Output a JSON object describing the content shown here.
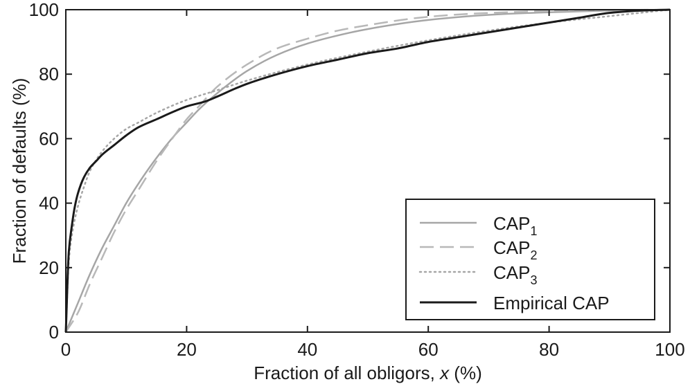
{
  "chart_data": {
    "type": "line",
    "title": "",
    "xlabel": "Fraction of all obligors, x (%)",
    "xlabel_parts": [
      "Fraction of all obligors, ",
      "x",
      " (%)"
    ],
    "ylabel": "Fraction of defaults (%)",
    "xlim": [
      0,
      100
    ],
    "ylim": [
      0,
      100
    ],
    "xticks": [
      0,
      20,
      40,
      60,
      80,
      100
    ],
    "yticks": [
      0,
      20,
      40,
      60,
      80,
      100
    ],
    "grid": false,
    "legend_position": "bottom-right",
    "series": [
      {
        "name": "CAP1",
        "label_base": "CAP",
        "label_sub": "1",
        "style": "solid",
        "color": "#a6a6a6",
        "x": [
          0,
          2,
          4,
          6,
          8,
          10,
          12,
          15,
          18,
          20,
          22,
          25,
          30,
          35,
          40,
          45,
          50,
          60,
          70,
          80,
          90,
          100
        ],
        "y": [
          0,
          9,
          18,
          26,
          33,
          40,
          46,
          54,
          61,
          65,
          69,
          74,
          81,
          86,
          89.5,
          92,
          94,
          96.8,
          98.4,
          99.2,
          99.7,
          100
        ]
      },
      {
        "name": "CAP2",
        "label_base": "CAP",
        "label_sub": "2",
        "style": "dashed",
        "color": "#b8b8b8",
        "x": [
          0,
          2,
          4,
          6,
          8,
          10,
          12,
          15,
          18,
          20,
          22,
          25,
          30,
          35,
          40,
          45,
          50,
          60,
          70,
          80,
          90,
          100
        ],
        "y": [
          0,
          6,
          15,
          23,
          31,
          38,
          44,
          53,
          61,
          66,
          70,
          76,
          83,
          88,
          91,
          93.5,
          95.2,
          97.8,
          99,
          99.6,
          99.9,
          100
        ]
      },
      {
        "name": "CAP3",
        "label_base": "CAP",
        "label_sub": "3",
        "style": "dotted",
        "color": "#a6a6a6",
        "x": [
          0,
          0.5,
          1,
          2,
          3,
          4,
          6,
          8,
          10,
          12,
          15,
          20,
          25,
          30,
          40,
          50,
          60,
          70,
          80,
          90,
          100
        ],
        "y": [
          0,
          22,
          30,
          39,
          45,
          50,
          56,
          60,
          63,
          65,
          68,
          72,
          75,
          78,
          83,
          87,
          90.5,
          93.5,
          96,
          98,
          100
        ]
      },
      {
        "name": "Empirical CAP",
        "label_base": "Empirical CAP",
        "label_sub": "",
        "style": "solid",
        "color": "#1a1a1a",
        "x": [
          0,
          0.5,
          1,
          1.5,
          2,
          3,
          4,
          5,
          6,
          8,
          10,
          12,
          15,
          18,
          20,
          23,
          25,
          28,
          30,
          35,
          40,
          45,
          50,
          55,
          60,
          65,
          70,
          75,
          80,
          85,
          90,
          95,
          100
        ],
        "y": [
          0,
          25,
          33,
          39,
          43,
          48,
          51,
          53,
          55,
          58,
          61,
          63.5,
          66,
          68.5,
          70,
          71.5,
          73,
          75.5,
          77,
          80,
          82.5,
          84.5,
          86.5,
          88,
          90,
          91.5,
          93,
          94.5,
          96,
          97.5,
          99,
          99.7,
          100
        ]
      }
    ]
  }
}
